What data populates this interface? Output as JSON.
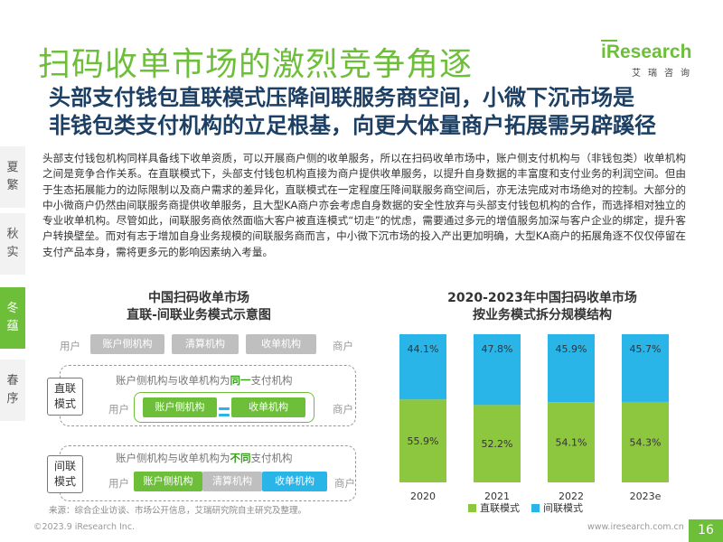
{
  "header": {
    "title": "扫码收单市场的激烈竞争角逐",
    "subtitle_lines": [
      "头部支付钱包直联模式压降间联服务商空间，小微下沉市场是",
      "非钱包类支付机构的立足根基，向更大体量商户拓展需另辟蹊径"
    ],
    "logo": {
      "text": "iResearch",
      "sub": "艾瑞咨询"
    }
  },
  "sidebar": {
    "items": [
      {
        "label_top": "夏",
        "label_bottom": "繁",
        "active": false
      },
      {
        "label_top": "秋",
        "label_bottom": "实",
        "active": false
      },
      {
        "label_top": "冬",
        "label_bottom": "蕴",
        "active": true
      },
      {
        "label_top": "春",
        "label_bottom": "序",
        "active": false
      }
    ]
  },
  "body_text": "头部支付钱包机构同样具备线下收单资质，可以开展商户侧的收单服务，所以在扫码收单市场中，账户侧支付机构与（非钱包类）收单机构之间是竞争合作关系。在直联模式下，头部支付钱包机构直接为商户提供收单服务，以提升自身数据的丰富度和支付业务的利润空间。但由于生态拓展能力的边际限制以及商户需求的差异化，直联模式在一定程度压降间联服务商空间后，亦无法完成对市场绝对的控制。大部分的中小微商户仍然由间联服务商提供收单服务，且大型KA商户亦会考虑自身数据的安全性放弃与头部支付钱包机构的合作，而选择相对独立的专业收单机构。尽管如此，间联服务商依然面临大客户被直连模式“切走”的忧虑，需要通过多元的增值服务加深与客户企业的绑定，提升客户转换壁垒。而对有志于增加自身业务规模的间联服务商而言，中小微下沉市场的投入产出更加明确，大型KA商户的拓展角逐不仅仅停留在支付产品本身，需将更多元的影响因素纳入考量。",
  "diagram": {
    "title_lines": [
      "中国扫码收单市场",
      "直联-间联业务模式示意图"
    ],
    "top_row": {
      "left": "用户",
      "boxes": [
        "账户侧机构",
        "清算机构",
        "收单机构"
      ],
      "right": "商户"
    },
    "direct": {
      "mode_label": [
        "直联",
        "模式"
      ],
      "caption_pre": "账户侧机构与收单机构为",
      "caption_hl": "同一",
      "caption_post": "支付机构",
      "left": "用户",
      "boxes": [
        "账户侧机构",
        "收单机构"
      ],
      "right": "商户"
    },
    "indirect": {
      "mode_label": [
        "间联",
        "模式"
      ],
      "caption_pre": "账户侧机构与收单机构为",
      "caption_hl": "不同",
      "caption_post": "支付机构",
      "left": "用户",
      "boxes": [
        "账户侧机构",
        "清算机构",
        "收单机构"
      ],
      "right": "商户"
    }
  },
  "chart_data": {
    "type": "bar",
    "stacked": true,
    "percent": true,
    "title": "2020-2023年中国扫码收单市场 按业务模式拆分规模结构",
    "title_lines": [
      "2020-2023年中国扫码收单市场",
      "按业务模式拆分规模结构"
    ],
    "categories": [
      "2020",
      "2021",
      "2022",
      "2023e"
    ],
    "series": [
      {
        "name": "直联模式",
        "color": "#8dc63f",
        "values": [
          55.9,
          52.2,
          54.1,
          54.3
        ],
        "labels": [
          "55.9%",
          "52.2%",
          "54.1%",
          "54.3%"
        ]
      },
      {
        "name": "间联模式",
        "color": "#29b5e8",
        "values": [
          44.1,
          47.8,
          45.9,
          45.7
        ],
        "labels": [
          "44.1%",
          "47.8%",
          "45.9%",
          "45.7%"
        ]
      }
    ],
    "ylim": [
      0,
      100
    ],
    "legend_position": "bottom",
    "grid": false
  },
  "footer": {
    "source": "来源：综合企业访谈、市场公开信息，艾瑞研究院自主研究及整理。",
    "copyright": "©2023.9 iResearch Inc.",
    "website": "www.iresearch.com.cn",
    "page": "16"
  }
}
